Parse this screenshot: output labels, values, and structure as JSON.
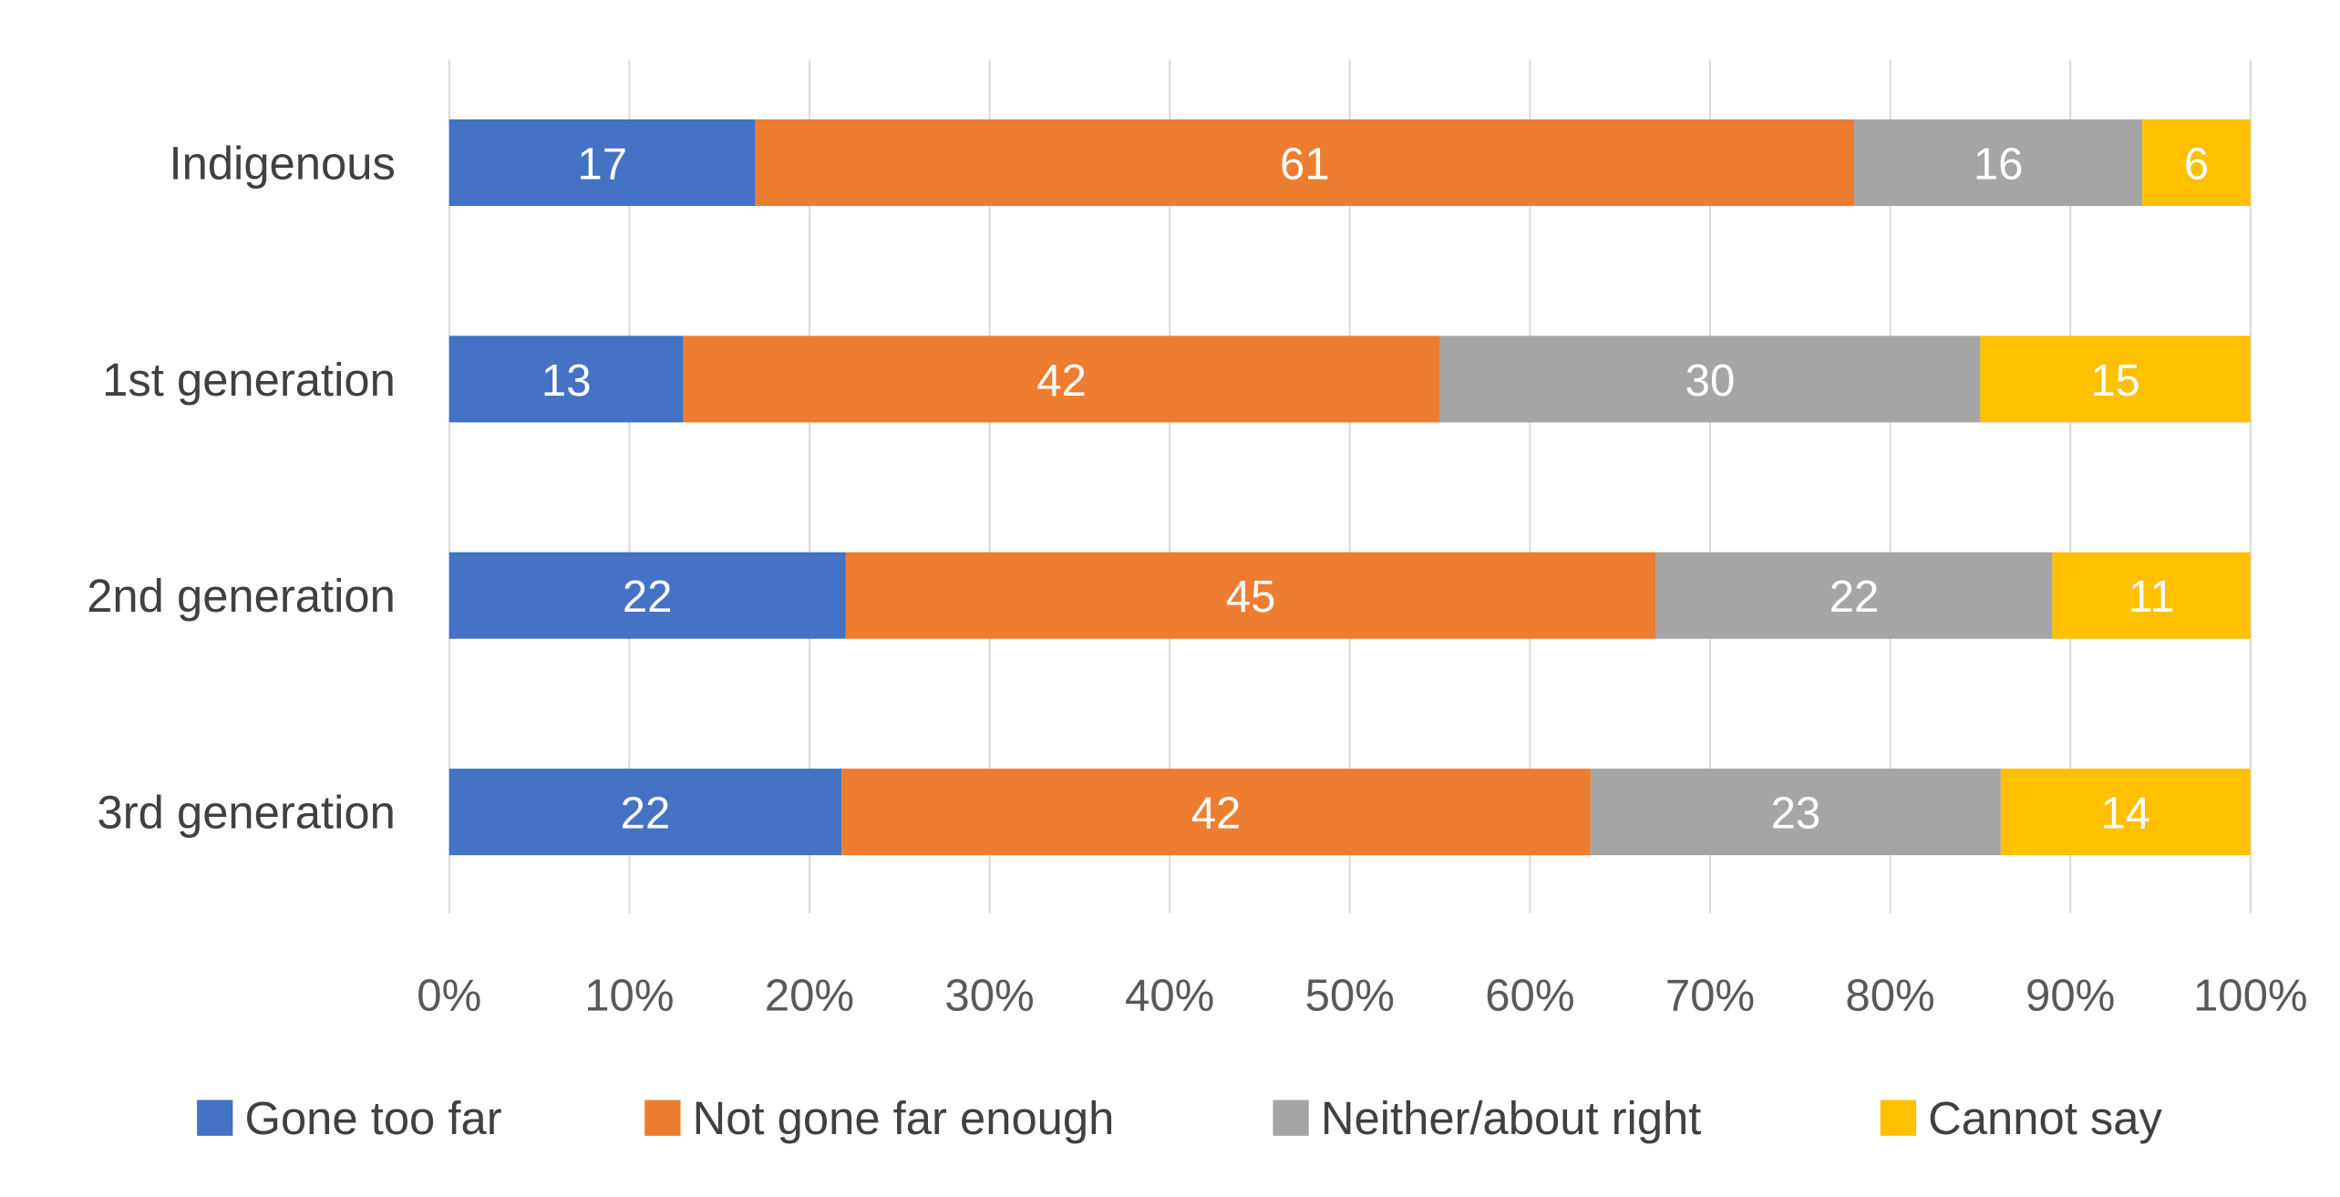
{
  "chart_data": {
    "type": "bar",
    "orientation": "horizontal",
    "stacked": "100%",
    "title": "",
    "xlabel": "",
    "ylabel": "",
    "categories": [
      "Indigenous",
      "1st generation",
      "2nd generation",
      "3rd generation"
    ],
    "series": [
      {
        "name": "Gone too far",
        "color": "#4472C4",
        "values": [
          17,
          13,
          22,
          22
        ]
      },
      {
        "name": "Not gone far enough",
        "color": "#ED7D31",
        "values": [
          61,
          42,
          45,
          42
        ]
      },
      {
        "name": "Neither/about right",
        "color": "#A5A5A5",
        "values": [
          16,
          30,
          22,
          23
        ]
      },
      {
        "name": "Cannot say",
        "color": "#FFC000",
        "values": [
          6,
          15,
          11,
          14
        ]
      }
    ],
    "xlim": [
      0,
      100
    ],
    "xticks": [
      "0%",
      "10%",
      "20%",
      "30%",
      "40%",
      "50%",
      "60%",
      "70%",
      "80%",
      "90%",
      "100%"
    ],
    "grid": true,
    "legend_position": "bottom"
  }
}
